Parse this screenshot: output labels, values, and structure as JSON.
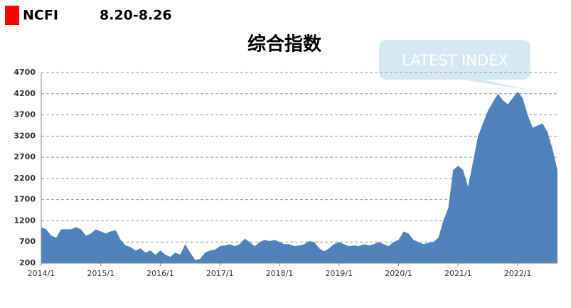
{
  "header": {
    "brand": "NCFI",
    "period": "8.20-8.26"
  },
  "chart_data": {
    "type": "area",
    "title": "综合指数",
    "annotation": "LATEST INDEX",
    "color": "#4f81bd",
    "grid": true,
    "ylim": [
      200,
      4700
    ],
    "yticks": [
      200,
      700,
      1200,
      1700,
      2200,
      2700,
      3200,
      3700,
      4200,
      4700
    ],
    "x": [
      "2014/1",
      "2014/2",
      "2014/3",
      "2014/4",
      "2014/5",
      "2014/6",
      "2014/7",
      "2014/8",
      "2014/9",
      "2014/10",
      "2014/11",
      "2014/12",
      "2015/1",
      "2015/2",
      "2015/3",
      "2015/4",
      "2015/5",
      "2015/6",
      "2015/7",
      "2015/8",
      "2015/9",
      "2015/10",
      "2015/11",
      "2015/12",
      "2016/1",
      "2016/2",
      "2016/3",
      "2016/4",
      "2016/5",
      "2016/6",
      "2016/7",
      "2016/8",
      "2016/9",
      "2016/10",
      "2016/11",
      "2016/12",
      "2017/1",
      "2017/2",
      "2017/3",
      "2017/4",
      "2017/5",
      "2017/6",
      "2017/7",
      "2017/8",
      "2017/9",
      "2017/10",
      "2017/11",
      "2017/12",
      "2018/1",
      "2018/2",
      "2018/3",
      "2018/4",
      "2018/5",
      "2018/6",
      "2018/7",
      "2018/8",
      "2018/9",
      "2018/10",
      "2018/11",
      "2018/12",
      "2019/1",
      "2019/2",
      "2019/3",
      "2019/4",
      "2019/5",
      "2019/6",
      "2019/7",
      "2019/8",
      "2019/9",
      "2019/10",
      "2019/11",
      "2019/12",
      "2020/1",
      "2020/2",
      "2020/3",
      "2020/4",
      "2020/5",
      "2020/6",
      "2020/7",
      "2020/8",
      "2020/9",
      "2020/10",
      "2020/11",
      "2020/12",
      "2021/1",
      "2021/2",
      "2021/3",
      "2021/4",
      "2021/5",
      "2021/6",
      "2021/7",
      "2021/8",
      "2021/9",
      "2021/10",
      "2021/11",
      "2021/12",
      "2022/1",
      "2022/2",
      "2022/3",
      "2022/4",
      "2022/5",
      "2022/6",
      "2022/7",
      "2022/8",
      "2022/9"
    ],
    "values": [
      1050,
      1000,
      850,
      800,
      1000,
      1000,
      1000,
      1050,
      1000,
      850,
      900,
      1000,
      950,
      900,
      950,
      980,
      750,
      620,
      580,
      500,
      550,
      450,
      500,
      400,
      500,
      400,
      350,
      450,
      400,
      650,
      450,
      280,
      300,
      450,
      500,
      520,
      600,
      620,
      650,
      600,
      650,
      780,
      700,
      600,
      700,
      750,
      720,
      750,
      700,
      650,
      650,
      600,
      620,
      650,
      720,
      700,
      550,
      480,
      550,
      650,
      700,
      650,
      600,
      620,
      600,
      650,
      620,
      650,
      700,
      650,
      600,
      700,
      750,
      950,
      900,
      750,
      700,
      650,
      680,
      700,
      800,
      1200,
      1500,
      2400,
      2500,
      2400,
      2000,
      2600,
      3200,
      3500,
      3800,
      4000,
      4200,
      4050,
      3950,
      4100,
      4250,
      4100,
      3700,
      3400,
      3450,
      3500,
      3300,
      2900,
      2400
    ],
    "xticks": [
      "2014/1",
      "2015/1",
      "2016/1",
      "2017/1",
      "2018/1",
      "2019/1",
      "2020/1",
      "2021/1",
      "2022/1"
    ]
  }
}
